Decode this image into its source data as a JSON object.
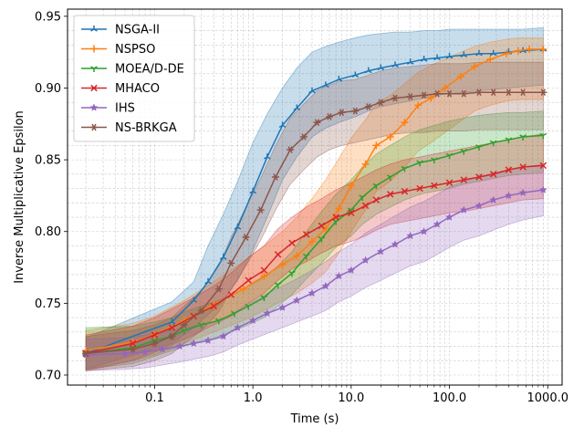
{
  "chart_data": {
    "type": "line",
    "xlabel": "Time (s)",
    "ylabel": "Inverse Multiplicative Epsilon",
    "xscale": "log",
    "xlim": [
      0.013,
      1400
    ],
    "ylim": [
      0.693,
      0.955
    ],
    "grid": true,
    "legend_position": "top-left",
    "x_ticks": [
      {
        "value": 0.1,
        "label": "0.1"
      },
      {
        "value": 1,
        "label": "1.0"
      },
      {
        "value": 10,
        "label": "10.0"
      },
      {
        "value": 100,
        "label": "100.0"
      },
      {
        "value": 1000,
        "label": "1000.0"
      }
    ],
    "y_ticks": [
      {
        "value": 0.7,
        "label": "0.70"
      },
      {
        "value": 0.75,
        "label": "0.75"
      },
      {
        "value": 0.8,
        "label": "0.80"
      },
      {
        "value": 0.85,
        "label": "0.85"
      },
      {
        "value": 0.9,
        "label": "0.90"
      },
      {
        "value": 0.95,
        "label": "0.95"
      }
    ],
    "series": [
      {
        "name": "NSGA-II",
        "color": "#1f77b4",
        "marker": "tri-up",
        "x": [
          0.02,
          0.15,
          0.25,
          0.35,
          0.5,
          0.7,
          1.0,
          1.4,
          2.0,
          2.8,
          4.0,
          5.5,
          7.5,
          11,
          15,
          20,
          28,
          40,
          55,
          75,
          100,
          140,
          200,
          280,
          400,
          560,
          900
        ],
        "y": [
          0.715,
          0.737,
          0.752,
          0.765,
          0.782,
          0.803,
          0.828,
          0.852,
          0.874,
          0.886,
          0.898,
          0.902,
          0.906,
          0.909,
          0.912,
          0.914,
          0.916,
          0.918,
          0.92,
          0.921,
          0.922,
          0.923,
          0.924,
          0.924,
          0.925,
          0.926,
          0.927
        ],
        "lower": [
          0.704,
          0.722,
          0.733,
          0.742,
          0.752,
          0.766,
          0.787,
          0.81,
          0.836,
          0.852,
          0.866,
          0.872,
          0.876,
          0.88,
          0.884,
          0.887,
          0.889,
          0.891,
          0.893,
          0.895,
          0.896,
          0.897,
          0.898,
          0.899,
          0.9,
          0.901,
          0.902
        ],
        "upper": [
          0.726,
          0.751,
          0.765,
          0.79,
          0.812,
          0.835,
          0.862,
          0.882,
          0.9,
          0.914,
          0.925,
          0.929,
          0.932,
          0.935,
          0.937,
          0.938,
          0.939,
          0.939,
          0.94,
          0.94,
          0.941,
          0.941,
          0.941,
          0.941,
          0.941,
          0.941,
          0.942
        ]
      },
      {
        "name": "NSPSO",
        "color": "#ff7f0e",
        "marker": "plus",
        "x": [
          0.02,
          0.06,
          0.1,
          0.2,
          0.4,
          0.8,
          1.3,
          2.0,
          2.8,
          4.0,
          5.5,
          7.5,
          10,
          14,
          18,
          25,
          35,
          48,
          65,
          90,
          130,
          180,
          260,
          380,
          500,
          650,
          900
        ],
        "y": [
          0.717,
          0.723,
          0.728,
          0.738,
          0.749,
          0.76,
          0.769,
          0.777,
          0.783,
          0.793,
          0.802,
          0.816,
          0.832,
          0.847,
          0.86,
          0.866,
          0.876,
          0.888,
          0.893,
          0.9,
          0.908,
          0.915,
          0.92,
          0.924,
          0.926,
          0.927,
          0.927
        ],
        "lower": [
          0.704,
          0.71,
          0.714,
          0.722,
          0.73,
          0.738,
          0.745,
          0.752,
          0.757,
          0.764,
          0.772,
          0.785,
          0.8,
          0.815,
          0.828,
          0.835,
          0.845,
          0.856,
          0.862,
          0.869,
          0.877,
          0.884,
          0.888,
          0.891,
          0.892,
          0.892,
          0.892
        ],
        "upper": [
          0.731,
          0.736,
          0.741,
          0.752,
          0.765,
          0.779,
          0.79,
          0.8,
          0.81,
          0.823,
          0.836,
          0.851,
          0.865,
          0.878,
          0.889,
          0.895,
          0.903,
          0.911,
          0.916,
          0.92,
          0.925,
          0.929,
          0.932,
          0.934,
          0.935,
          0.935,
          0.935
        ]
      },
      {
        "name": "MOEA/D-DE",
        "color": "#2ca02c",
        "marker": "tri-down",
        "x": [
          0.02,
          0.06,
          0.1,
          0.15,
          0.2,
          0.3,
          0.45,
          0.65,
          0.9,
          1.3,
          1.8,
          2.5,
          3.5,
          5.0,
          7.0,
          10,
          13,
          18,
          25,
          35,
          50,
          70,
          100,
          140,
          200,
          280,
          400,
          560,
          900
        ],
        "y": [
          0.715,
          0.719,
          0.724,
          0.727,
          0.731,
          0.735,
          0.738,
          0.743,
          0.748,
          0.754,
          0.763,
          0.771,
          0.783,
          0.795,
          0.807,
          0.815,
          0.824,
          0.832,
          0.838,
          0.844,
          0.848,
          0.85,
          0.853,
          0.856,
          0.859,
          0.862,
          0.864,
          0.866,
          0.867
        ],
        "lower": [
          0.704,
          0.708,
          0.713,
          0.717,
          0.72,
          0.724,
          0.727,
          0.731,
          0.735,
          0.74,
          0.748,
          0.756,
          0.767,
          0.778,
          0.789,
          0.797,
          0.805,
          0.812,
          0.817,
          0.822,
          0.826,
          0.828,
          0.83,
          0.833,
          0.835,
          0.837,
          0.839,
          0.84,
          0.841
        ],
        "upper": [
          0.733,
          0.734,
          0.737,
          0.74,
          0.744,
          0.748,
          0.752,
          0.757,
          0.762,
          0.768,
          0.776,
          0.786,
          0.8,
          0.814,
          0.826,
          0.836,
          0.845,
          0.854,
          0.86,
          0.866,
          0.871,
          0.874,
          0.877,
          0.879,
          0.881,
          0.882,
          0.883,
          0.883,
          0.884
        ]
      },
      {
        "name": "MHACO",
        "color": "#d62728",
        "marker": "x",
        "x": [
          0.02,
          0.06,
          0.1,
          0.15,
          0.25,
          0.4,
          0.6,
          0.9,
          1.3,
          1.8,
          2.5,
          3.5,
          5.0,
          7.0,
          10,
          14,
          18,
          25,
          35,
          50,
          70,
          100,
          140,
          200,
          280,
          400,
          560,
          900
        ],
        "y": [
          0.715,
          0.722,
          0.728,
          0.733,
          0.741,
          0.748,
          0.756,
          0.766,
          0.773,
          0.784,
          0.792,
          0.798,
          0.804,
          0.81,
          0.813,
          0.818,
          0.822,
          0.826,
          0.828,
          0.83,
          0.832,
          0.834,
          0.836,
          0.838,
          0.84,
          0.843,
          0.845,
          0.846
        ],
        "lower": [
          0.703,
          0.71,
          0.716,
          0.721,
          0.728,
          0.735,
          0.741,
          0.75,
          0.757,
          0.766,
          0.774,
          0.779,
          0.785,
          0.79,
          0.793,
          0.797,
          0.801,
          0.805,
          0.807,
          0.809,
          0.811,
          0.813,
          0.814,
          0.816,
          0.818,
          0.82,
          0.822,
          0.823
        ],
        "upper": [
          0.728,
          0.734,
          0.74,
          0.746,
          0.754,
          0.762,
          0.771,
          0.782,
          0.79,
          0.802,
          0.81,
          0.817,
          0.823,
          0.829,
          0.834,
          0.839,
          0.843,
          0.847,
          0.85,
          0.852,
          0.854,
          0.856,
          0.858,
          0.86,
          0.862,
          0.864,
          0.866,
          0.868
        ]
      },
      {
        "name": "IHS",
        "color": "#9467bd",
        "marker": "star",
        "x": [
          0.02,
          0.05,
          0.08,
          0.12,
          0.18,
          0.25,
          0.35,
          0.5,
          0.7,
          1.0,
          1.4,
          2.0,
          2.8,
          4.0,
          5.5,
          7.5,
          10,
          14,
          20,
          28,
          40,
          55,
          75,
          100,
          140,
          200,
          280,
          400,
          560,
          900
        ],
        "y": [
          0.714,
          0.715,
          0.716,
          0.718,
          0.72,
          0.722,
          0.724,
          0.727,
          0.733,
          0.738,
          0.743,
          0.747,
          0.752,
          0.757,
          0.762,
          0.769,
          0.773,
          0.78,
          0.786,
          0.791,
          0.797,
          0.8,
          0.805,
          0.81,
          0.815,
          0.818,
          0.822,
          0.825,
          0.827,
          0.829
        ],
        "lower": [
          0.703,
          0.704,
          0.705,
          0.707,
          0.709,
          0.711,
          0.713,
          0.716,
          0.721,
          0.725,
          0.729,
          0.733,
          0.737,
          0.741,
          0.745,
          0.751,
          0.755,
          0.761,
          0.766,
          0.771,
          0.776,
          0.779,
          0.784,
          0.789,
          0.794,
          0.797,
          0.801,
          0.805,
          0.808,
          0.811
        ],
        "upper": [
          0.725,
          0.726,
          0.728,
          0.73,
          0.732,
          0.734,
          0.736,
          0.739,
          0.745,
          0.751,
          0.757,
          0.762,
          0.767,
          0.773,
          0.779,
          0.786,
          0.791,
          0.799,
          0.805,
          0.811,
          0.817,
          0.821,
          0.826,
          0.831,
          0.835,
          0.838,
          0.841,
          0.843,
          0.845,
          0.847
        ]
      },
      {
        "name": "NS-BRKGA",
        "color": "#8c564b",
        "marker": "asterisk",
        "x": [
          0.02,
          0.06,
          0.1,
          0.15,
          0.2,
          0.3,
          0.45,
          0.6,
          0.85,
          1.2,
          1.7,
          2.4,
          3.3,
          4.5,
          6.0,
          8.0,
          11,
          15,
          20,
          28,
          40,
          55,
          75,
          100,
          140,
          200,
          280,
          400,
          560,
          900
        ],
        "y": [
          0.715,
          0.718,
          0.722,
          0.727,
          0.735,
          0.745,
          0.76,
          0.778,
          0.796,
          0.815,
          0.838,
          0.857,
          0.866,
          0.876,
          0.88,
          0.883,
          0.884,
          0.887,
          0.89,
          0.893,
          0.894,
          0.895,
          0.896,
          0.896,
          0.896,
          0.897,
          0.897,
          0.897,
          0.897,
          0.897
        ],
        "lower": [
          0.703,
          0.706,
          0.71,
          0.715,
          0.722,
          0.731,
          0.744,
          0.76,
          0.776,
          0.794,
          0.815,
          0.833,
          0.843,
          0.852,
          0.857,
          0.86,
          0.862,
          0.864,
          0.866,
          0.868,
          0.869,
          0.869,
          0.87,
          0.87,
          0.87,
          0.871,
          0.871,
          0.871,
          0.871,
          0.871
        ],
        "upper": [
          0.727,
          0.731,
          0.735,
          0.74,
          0.748,
          0.759,
          0.776,
          0.796,
          0.817,
          0.837,
          0.86,
          0.879,
          0.889,
          0.898,
          0.902,
          0.905,
          0.906,
          0.909,
          0.912,
          0.914,
          0.915,
          0.916,
          0.917,
          0.917,
          0.917,
          0.918,
          0.918,
          0.918,
          0.918,
          0.918
        ]
      }
    ]
  }
}
